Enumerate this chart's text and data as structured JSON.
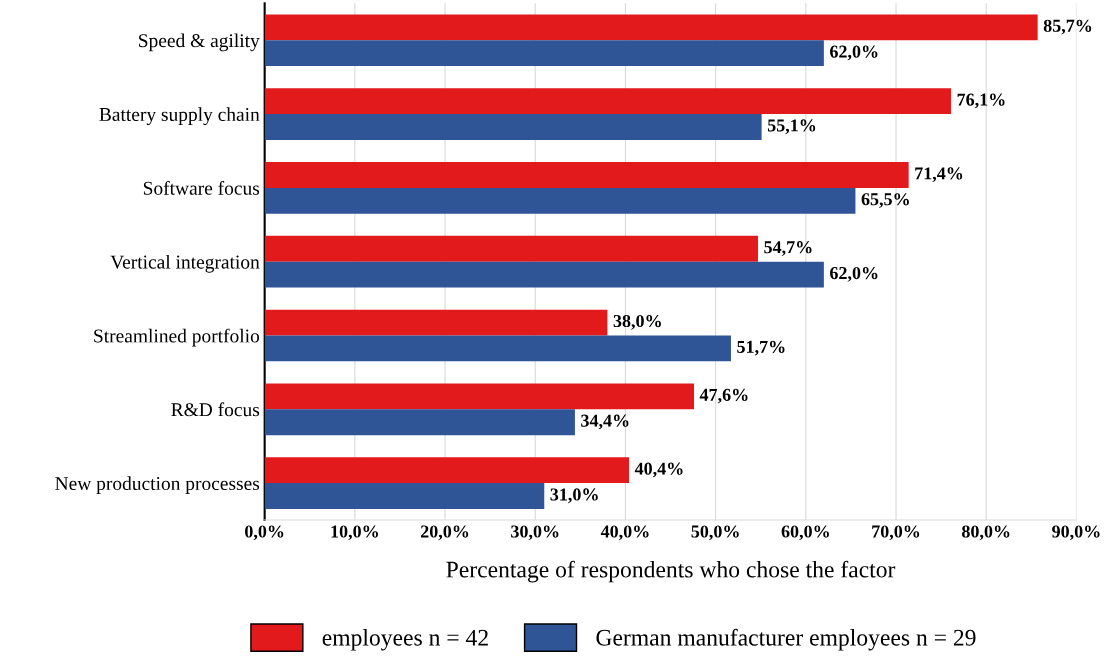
{
  "chart_data": {
    "type": "bar",
    "orientation": "horizontal",
    "xlabel": "Percentage of respondents who chose the factor",
    "categories": [
      "Speed & agility",
      "Battery supply chain",
      "Software focus",
      "Vertical integration",
      "Streamlined portfolio",
      "R&D focus",
      "New production processes"
    ],
    "series": [
      {
        "name": "employees n = 42",
        "color": "#e31a1c",
        "values": [
          85.7,
          76.1,
          71.4,
          54.7,
          38.0,
          47.6,
          40.4
        ],
        "value_labels": [
          "85,7%",
          "76,1%",
          "71,4%",
          "54,7%",
          "38,0%",
          "47,6%",
          "40,4%"
        ]
      },
      {
        "name": "German manufacturer employees n = 29",
        "color": "#2f5597",
        "values": [
          62.0,
          55.1,
          65.5,
          62.0,
          51.7,
          34.4,
          31.0
        ],
        "value_labels": [
          "62,0%",
          "55,1%",
          "65,5%",
          "62,0%",
          "51,7%",
          "34,4%",
          "31,0%"
        ]
      }
    ],
    "xlim": [
      0,
      90
    ],
    "xticks": [
      {
        "value": 0,
        "label": "0,0%"
      },
      {
        "value": 10,
        "label": "10,0%"
      },
      {
        "value": 20,
        "label": "20,0%"
      },
      {
        "value": 30,
        "label": "30,0%"
      },
      {
        "value": 40,
        "label": "40,0%"
      },
      {
        "value": 50,
        "label": "50,0%"
      },
      {
        "value": 60,
        "label": "60,0%"
      },
      {
        "value": 70,
        "label": "70,0%"
      },
      {
        "value": 80,
        "label": "80,0%"
      },
      {
        "value": 90,
        "label": "90,0%"
      }
    ],
    "grid": "x",
    "legend": "bottom"
  }
}
